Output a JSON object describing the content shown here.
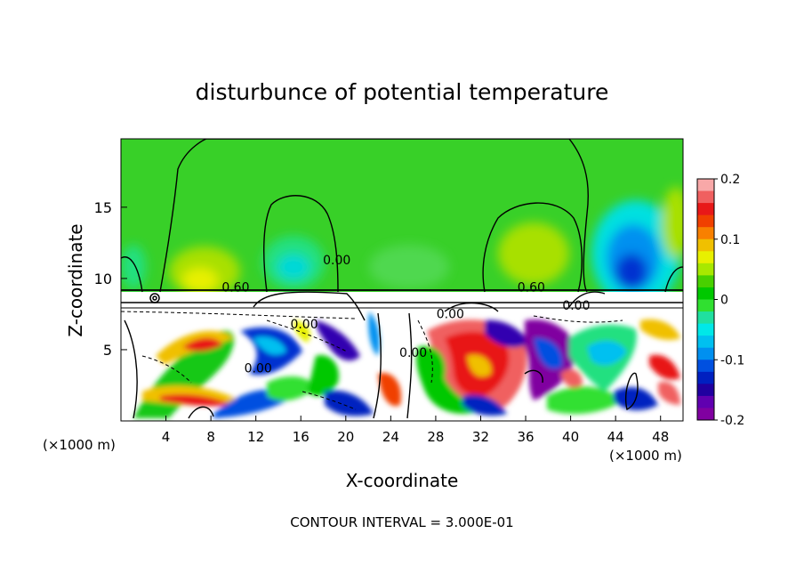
{
  "chart_data": {
    "type": "heatmap",
    "title": "disturbunce of potential temperature",
    "xlabel": "X-coordinate",
    "ylabel": "Z-coordinate",
    "x_unit": "(×1000 m)",
    "y_unit": "(×1000 m)",
    "xlim": [
      0,
      50
    ],
    "ylim": [
      0,
      19.8
    ],
    "x_ticks": [
      4,
      8,
      12,
      16,
      20,
      24,
      28,
      32,
      36,
      40,
      44,
      48
    ],
    "y_ticks": [
      5,
      10,
      15
    ],
    "colorbar": {
      "range": [
        -0.2,
        0.2
      ],
      "ticks": [
        "0.2",
        "0.1",
        "0",
        "-0.1",
        "-0.2"
      ],
      "colors": [
        "#f8a8a8",
        "#f06060",
        "#e81818",
        "#f04000",
        "#f88000",
        "#f0c000",
        "#e8f000",
        "#a8e800",
        "#48d000",
        "#00c800",
        "#30e030",
        "#20e0a0",
        "#00e8e8",
        "#00c0f0",
        "#0090f0",
        "#0050e0",
        "#0020c0",
        "#2000a0",
        "#6000b0",
        "#8000a0"
      ]
    },
    "contour_labels": [
      {
        "text": "0.60",
        "x": 10.2,
        "y": 9.1
      },
      {
        "text": "0.60",
        "x": 36.5,
        "y": 9.1
      },
      {
        "text": "0.00",
        "x": 19.2,
        "y": 11
      },
      {
        "text": "0.00",
        "x": 16.3,
        "y": 6.5
      },
      {
        "text": "0.00",
        "x": 12.2,
        "y": 3.4
      },
      {
        "text": "0.00",
        "x": 26.0,
        "y": 4.5
      },
      {
        "text": "0.00",
        "x": 29.3,
        "y": 7.2
      },
      {
        "text": "0.00",
        "x": 40.5,
        "y": 7.8
      }
    ],
    "footer": "CONTOUR INTERVAL = 3.000E-01"
  }
}
